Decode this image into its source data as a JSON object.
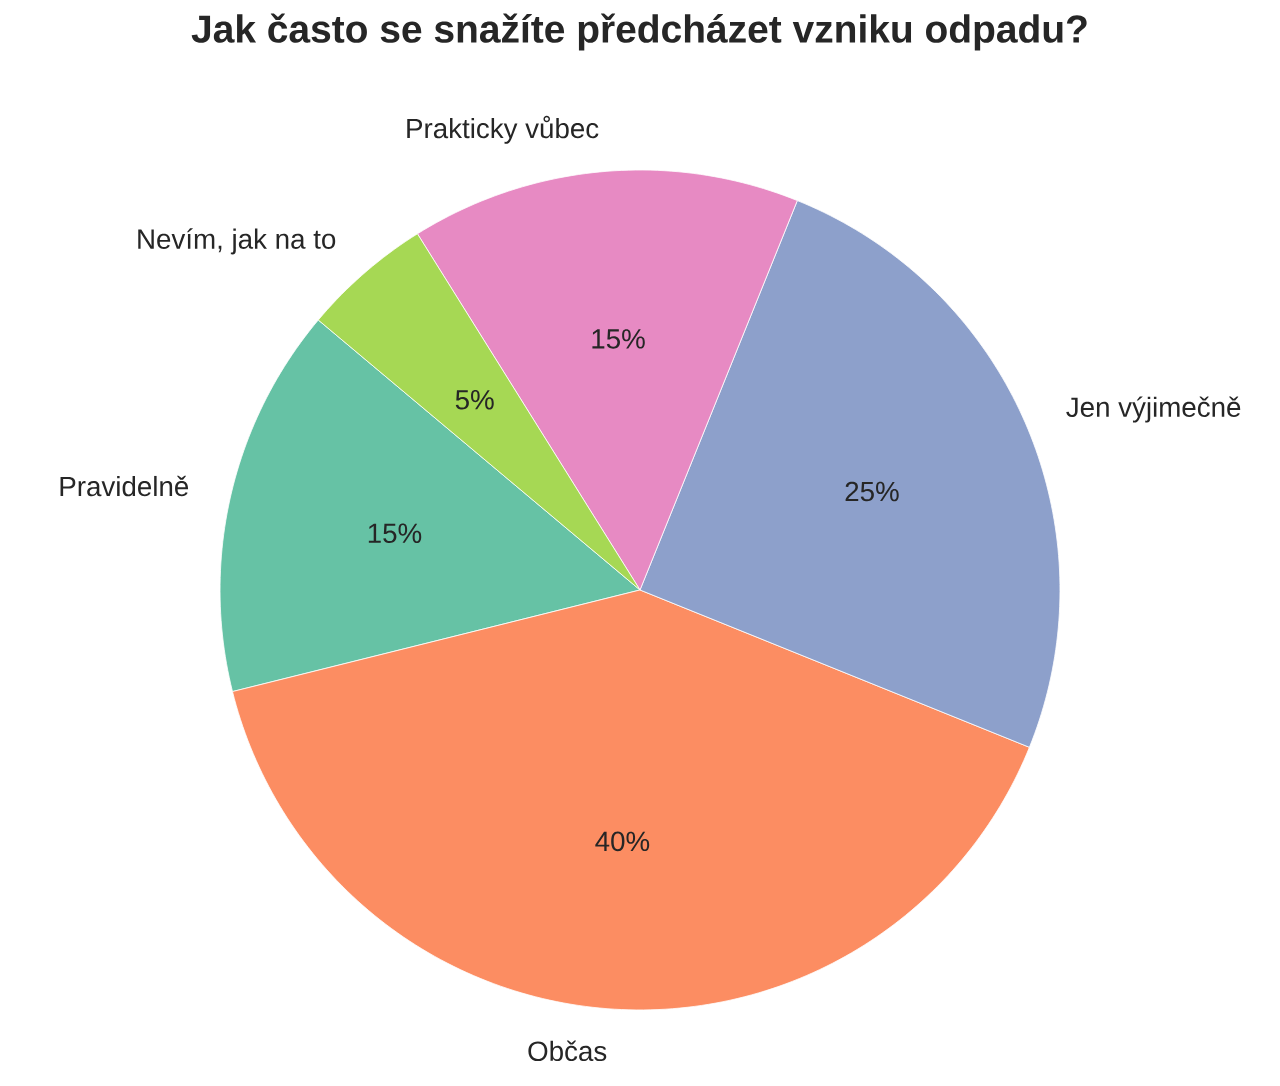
{
  "chart_data": {
    "type": "pie",
    "title": "Jak často se snažíte předcházet vzniku odpadu?",
    "categories": [
      "Pravidelně",
      "Občas",
      "Jen výjimečně",
      "Prakticky vůbec",
      "Nevím, jak na to"
    ],
    "values": [
      15,
      40,
      25,
      15,
      5
    ],
    "colors": [
      "#66c2a5",
      "#fc8d62",
      "#8da0cb",
      "#e78ac3",
      "#a6d854"
    ],
    "value_labels": [
      "15%",
      "40%",
      "25%",
      "15%",
      "5%"
    ]
  }
}
